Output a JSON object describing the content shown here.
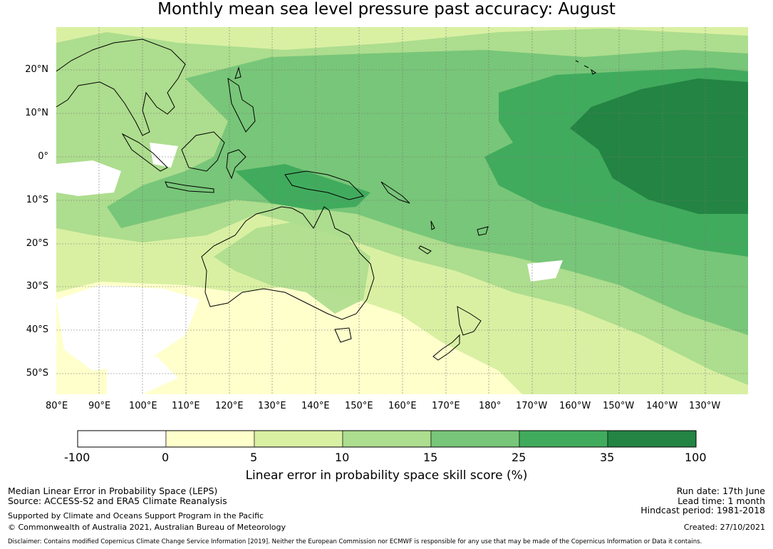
{
  "title": "Monthly mean sea level pressure past accuracy: August",
  "map": {
    "lat_labels": [
      "20°N",
      "10°N",
      "0°",
      "10°S",
      "20°S",
      "30°S",
      "40°S",
      "50°S"
    ],
    "lon_labels": [
      "80°E",
      "90°E",
      "100°E",
      "110°E",
      "120°E",
      "130°E",
      "140°E",
      "150°E",
      "160°E",
      "170°E",
      "180°",
      "170°W",
      "160°W",
      "150°W",
      "140°W",
      "130°W"
    ]
  },
  "colorbar": {
    "title": "Linear error in probability space skill score (%)",
    "ticks": [
      "-100",
      "0",
      "5",
      "10",
      "15",
      "25",
      "35",
      "100"
    ],
    "colors": [
      "#ffffff",
      "#ffffcc",
      "#d9f0a3",
      "#addd8e",
      "#78c679",
      "#41ab5d",
      "#238443"
    ]
  },
  "footer": {
    "left_line1": "Median Linear Error in Probability Space (LEPS)",
    "left_line2": "Source: ACCESS-S2 and ERA5 Climate Reanalysis",
    "left_line3": "Supported by Climate and Oceans Support Program in the Pacific",
    "left_line4": "© Commonwealth of Australia 2021, Australian Bureau of Meteorology",
    "right_line1": "Run date: 17th June",
    "right_line2": "Lead time: 1 month",
    "right_line3": "Hindcast period: 1981-2018",
    "right_line4": "Created: 27/10/2021",
    "disclaimer": "Disclaimer: Contains modified Copernicus Climate Change Service Information [2019]. Neither the European Commission nor ECMWF is responsible for any use that may be made of the Copernicus Information or Data it contains."
  }
}
